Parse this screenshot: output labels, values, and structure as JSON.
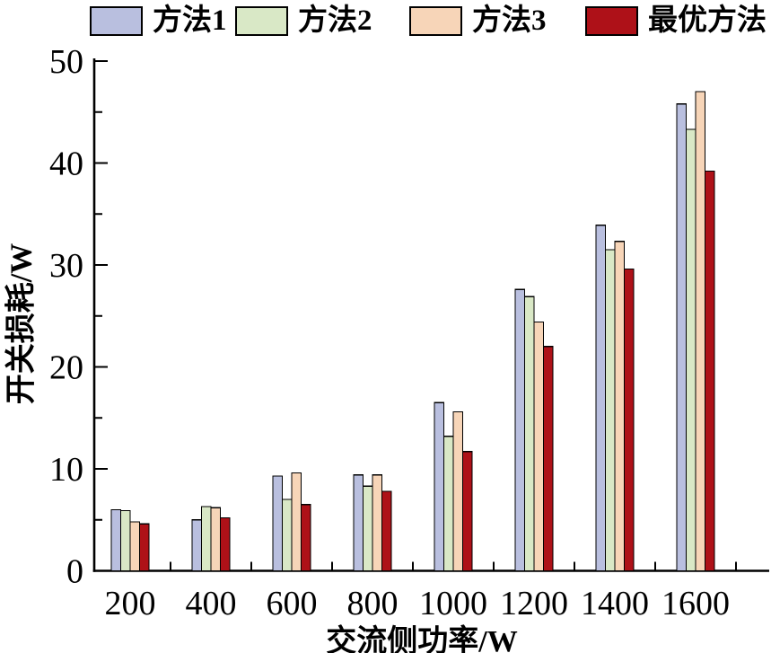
{
  "figure_title": "",
  "chart_data": {
    "type": "bar",
    "title": "",
    "xlabel": "交流侧功率/W",
    "ylabel": "开关损耗/W",
    "categories": [
      "200",
      "400",
      "600",
      "800",
      "1000",
      "1200",
      "1400",
      "1600"
    ],
    "series": [
      {
        "name": "方法1",
        "color": "#b9bfdf",
        "values": [
          6.0,
          5.0,
          9.3,
          9.4,
          16.5,
          27.6,
          33.9,
          45.8
        ]
      },
      {
        "name": "方法2",
        "color": "#d9e8c6",
        "values": [
          5.9,
          6.3,
          7.0,
          8.3,
          13.2,
          26.9,
          31.5,
          43.3
        ]
      },
      {
        "name": "方法3",
        "color": "#f7d5b8",
        "values": [
          4.8,
          6.2,
          9.6,
          9.4,
          15.6,
          24.4,
          32.3,
          47.0
        ]
      },
      {
        "name": "最优方法",
        "color": "#ae1118",
        "values": [
          4.6,
          5.2,
          6.5,
          7.8,
          11.7,
          22.0,
          29.6,
          39.2
        ]
      }
    ],
    "ylim": [
      0,
      50
    ],
    "y_major_ticks": [
      "0",
      "10",
      "20",
      "30",
      "40",
      "50"
    ],
    "y_minor_step": 5,
    "x_minor_between_groups": true,
    "grid": false,
    "legend_position": "top",
    "axis_color": "#000000",
    "bar_border_color": "#000000",
    "background_color": "#ffffff"
  }
}
